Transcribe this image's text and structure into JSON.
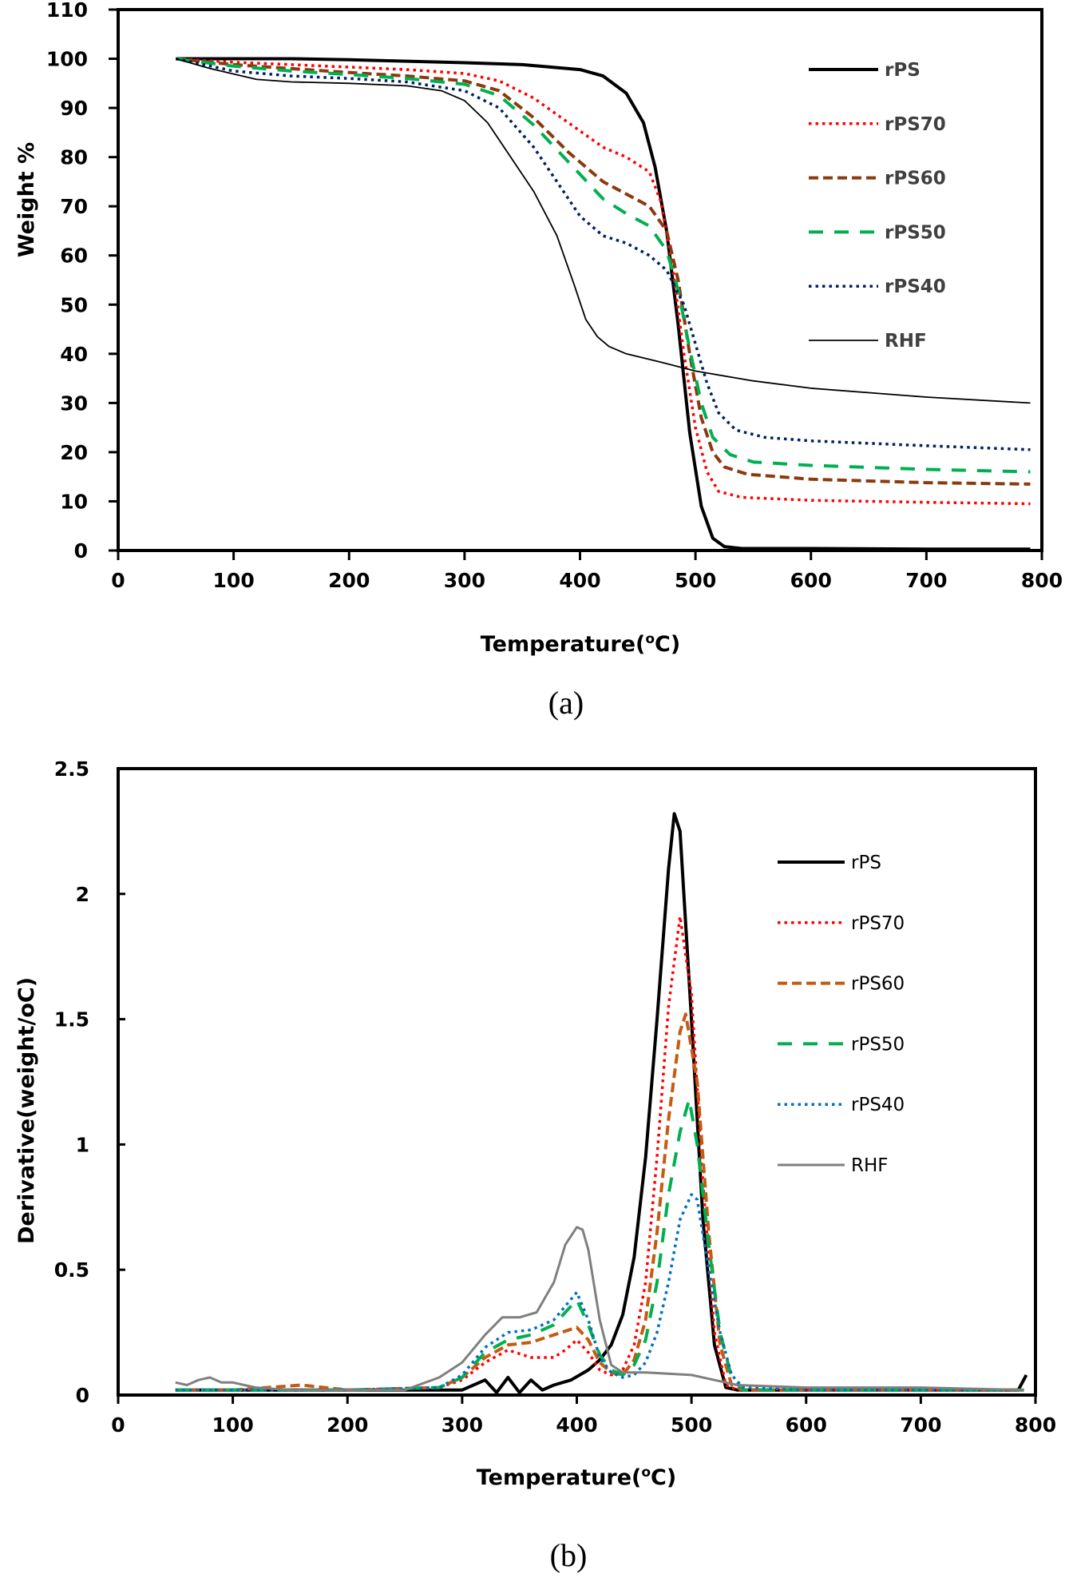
{
  "chart_data": [
    {
      "type": "line",
      "panel_caption": "(a)",
      "xlabel_main": "Temperature(",
      "xlabel_sup": "o",
      "xlabel_tail": "C)",
      "ylabel": "Weight %",
      "xlim": [
        0,
        800
      ],
      "ylim": [
        0,
        110
      ],
      "xticks": [
        "0",
        "100",
        "200",
        "300",
        "400",
        "500",
        "600",
        "700",
        "800"
      ],
      "yticks": [
        "0",
        "10",
        "20",
        "30",
        "40",
        "50",
        "60",
        "70",
        "80",
        "90",
        "100",
        "110"
      ],
      "legend_position": "top-right",
      "series": [
        {
          "name": "rPS",
          "color": "#000000",
          "style": "solid-thick",
          "x": [
            50,
            100,
            150,
            200,
            250,
            300,
            350,
            400,
            420,
            440,
            455,
            465,
            475,
            485,
            495,
            505,
            515,
            525,
            540,
            600,
            700,
            790
          ],
          "y": [
            100,
            100,
            100,
            99.8,
            99.5,
            99.2,
            98.8,
            97.8,
            96.5,
            93,
            87,
            78,
            65,
            46,
            24,
            9,
            2.5,
            0.8,
            0.4,
            0.4,
            0.3,
            0.3
          ]
        },
        {
          "name": "rPS70",
          "color": "#ff0000",
          "style": "dotted",
          "x": [
            50,
            100,
            150,
            200,
            250,
            300,
            330,
            360,
            390,
            420,
            440,
            460,
            470,
            480,
            490,
            500,
            510,
            520,
            540,
            600,
            700,
            790
          ],
          "y": [
            100,
            99.3,
            98.8,
            98.3,
            97.8,
            97,
            95.5,
            92,
            87,
            82,
            80,
            77,
            71,
            58,
            40,
            25,
            16,
            12,
            10.8,
            10.2,
            9.8,
            9.5
          ]
        },
        {
          "name": "rPS60",
          "color": "#8b3a0e",
          "style": "dashed",
          "x": [
            50,
            100,
            150,
            200,
            250,
            300,
            330,
            360,
            390,
            420,
            440,
            460,
            475,
            485,
            495,
            505,
            515,
            525,
            545,
            600,
            700,
            790
          ],
          "y": [
            100,
            98.8,
            98,
            97.2,
            96.5,
            95.5,
            93.5,
            88,
            81,
            75,
            72.5,
            70,
            65,
            55,
            40,
            27,
            20,
            17,
            15.5,
            14.5,
            13.8,
            13.5
          ]
        },
        {
          "name": "rPS50",
          "color": "#00b050",
          "style": "long-dashed",
          "x": [
            50,
            100,
            150,
            200,
            250,
            300,
            330,
            360,
            390,
            420,
            440,
            460,
            475,
            485,
            495,
            505,
            515,
            530,
            550,
            600,
            700,
            790
          ],
          "y": [
            100,
            98.5,
            97.5,
            96.8,
            96,
            94.8,
            92.5,
            86.5,
            79,
            71.5,
            68.5,
            66,
            61,
            53,
            41,
            30,
            23,
            19.5,
            18,
            17.3,
            16.5,
            16
          ]
        },
        {
          "name": "rPS40",
          "color": "#002060",
          "style": "dotted",
          "x": [
            50,
            100,
            150,
            200,
            250,
            300,
            330,
            360,
            380,
            400,
            420,
            440,
            460,
            475,
            490,
            500,
            510,
            520,
            535,
            560,
            600,
            700,
            790
          ],
          "y": [
            100,
            97.5,
            96.5,
            96,
            95.3,
            93.5,
            90,
            82,
            75,
            68,
            64,
            62.5,
            60,
            57,
            50,
            42,
            34,
            28,
            24.5,
            23,
            22.3,
            21.3,
            20.5
          ]
        },
        {
          "name": "RHF",
          "color": "#000000",
          "style": "solid-thin",
          "x": [
            50,
            80,
            120,
            150,
            200,
            250,
            280,
            300,
            320,
            340,
            360,
            380,
            395,
            405,
            415,
            425,
            440,
            470,
            500,
            550,
            600,
            700,
            790
          ],
          "y": [
            100,
            98,
            95.8,
            95.3,
            95,
            94.5,
            93.5,
            91.5,
            87,
            80,
            73,
            64,
            54,
            47,
            43.5,
            41.5,
            40,
            38.3,
            36.5,
            34.5,
            33,
            31.2,
            30
          ]
        }
      ]
    },
    {
      "type": "line",
      "panel_caption": "(b)",
      "xlabel_main": "Temperature(",
      "xlabel_sup": "o",
      "xlabel_tail": "C)",
      "ylabel": "Derivative(weight/oC)",
      "xlim": [
        0,
        800
      ],
      "ylim": [
        0,
        2.5
      ],
      "xticks": [
        "0",
        "100",
        "200",
        "300",
        "400",
        "500",
        "600",
        "700",
        "800"
      ],
      "yticks": [
        "0",
        "0.5",
        "1",
        "1.5",
        "2",
        "2.5"
      ],
      "legend_position": "top-right",
      "series": [
        {
          "name": "rPS",
          "color": "#000000",
          "style": "solid-thick",
          "x": [
            50,
            100,
            150,
            200,
            250,
            300,
            320,
            330,
            340,
            350,
            360,
            370,
            380,
            395,
            410,
            420,
            430,
            440,
            450,
            460,
            470,
            480,
            485,
            490,
            500,
            510,
            520,
            530,
            540,
            600,
            700,
            785,
            792
          ],
          "y": [
            0.02,
            0.02,
            0.02,
            0.02,
            0.02,
            0.02,
            0.06,
            0.01,
            0.07,
            0.01,
            0.06,
            0.02,
            0.04,
            0.06,
            0.1,
            0.14,
            0.2,
            0.32,
            0.55,
            0.95,
            1.5,
            2.1,
            2.32,
            2.25,
            1.5,
            0.7,
            0.2,
            0.03,
            0.02,
            0.02,
            0.02,
            0.02,
            0.08
          ]
        },
        {
          "name": "rPS70",
          "color": "#ff0000",
          "style": "dotted",
          "x": [
            50,
            100,
            200,
            280,
            300,
            320,
            340,
            360,
            380,
            390,
            400,
            410,
            420,
            430,
            440,
            450,
            460,
            470,
            480,
            490,
            500,
            510,
            520,
            530,
            540,
            600,
            700,
            790
          ],
          "y": [
            0.02,
            0.02,
            0.02,
            0.03,
            0.06,
            0.13,
            0.18,
            0.15,
            0.15,
            0.18,
            0.22,
            0.17,
            0.1,
            0.08,
            0.1,
            0.2,
            0.45,
            0.95,
            1.55,
            1.91,
            1.6,
            0.85,
            0.25,
            0.04,
            0.02,
            0.02,
            0.02,
            0.02
          ]
        },
        {
          "name": "rPS60",
          "color": "#c55a11",
          "style": "dashed",
          "x": [
            50,
            100,
            160,
            200,
            280,
            300,
            320,
            340,
            360,
            380,
            400,
            410,
            420,
            430,
            440,
            450,
            460,
            470,
            480,
            490,
            495,
            505,
            515,
            525,
            535,
            545,
            600,
            700,
            790
          ],
          "y": [
            0.02,
            0.02,
            0.04,
            0.02,
            0.03,
            0.07,
            0.15,
            0.2,
            0.21,
            0.24,
            0.27,
            0.22,
            0.13,
            0.09,
            0.08,
            0.14,
            0.3,
            0.65,
            1.1,
            1.45,
            1.52,
            1.25,
            0.65,
            0.2,
            0.04,
            0.02,
            0.02,
            0.02,
            0.02
          ]
        },
        {
          "name": "rPS50",
          "color": "#00b050",
          "style": "long-dashed",
          "x": [
            50,
            100,
            200,
            280,
            300,
            320,
            340,
            360,
            380,
            400,
            410,
            420,
            430,
            440,
            450,
            460,
            470,
            480,
            490,
            498,
            505,
            515,
            525,
            535,
            545,
            600,
            700,
            790
          ],
          "y": [
            0.02,
            0.02,
            0.02,
            0.03,
            0.07,
            0.17,
            0.22,
            0.24,
            0.28,
            0.38,
            0.28,
            0.16,
            0.1,
            0.08,
            0.12,
            0.22,
            0.45,
            0.8,
            1.05,
            1.18,
            1.0,
            0.6,
            0.25,
            0.07,
            0.02,
            0.02,
            0.02,
            0.02
          ]
        },
        {
          "name": "rPS40",
          "color": "#0070c0",
          "style": "dotted",
          "x": [
            50,
            100,
            200,
            280,
            300,
            320,
            340,
            360,
            380,
            400,
            410,
            420,
            430,
            440,
            450,
            460,
            470,
            480,
            490,
            500,
            505,
            515,
            525,
            535,
            545,
            600,
            700,
            790
          ],
          "y": [
            0.02,
            0.02,
            0.02,
            0.03,
            0.08,
            0.19,
            0.25,
            0.26,
            0.3,
            0.41,
            0.3,
            0.15,
            0.09,
            0.07,
            0.08,
            0.13,
            0.25,
            0.45,
            0.7,
            0.8,
            0.78,
            0.5,
            0.25,
            0.08,
            0.03,
            0.02,
            0.02,
            0.02
          ]
        },
        {
          "name": "RHF",
          "color": "#7f7f7f",
          "style": "solid-gray",
          "x": [
            50,
            60,
            70,
            80,
            90,
            100,
            120,
            150,
            200,
            250,
            280,
            300,
            320,
            335,
            350,
            365,
            380,
            390,
            400,
            405,
            410,
            420,
            430,
            440,
            460,
            500,
            520,
            540,
            600,
            700,
            790
          ],
          "y": [
            0.05,
            0.04,
            0.06,
            0.07,
            0.05,
            0.05,
            0.03,
            0.02,
            0.02,
            0.02,
            0.07,
            0.13,
            0.24,
            0.31,
            0.31,
            0.33,
            0.45,
            0.6,
            0.67,
            0.66,
            0.58,
            0.3,
            0.12,
            0.09,
            0.09,
            0.08,
            0.06,
            0.04,
            0.03,
            0.03,
            0.02
          ]
        }
      ]
    }
  ]
}
